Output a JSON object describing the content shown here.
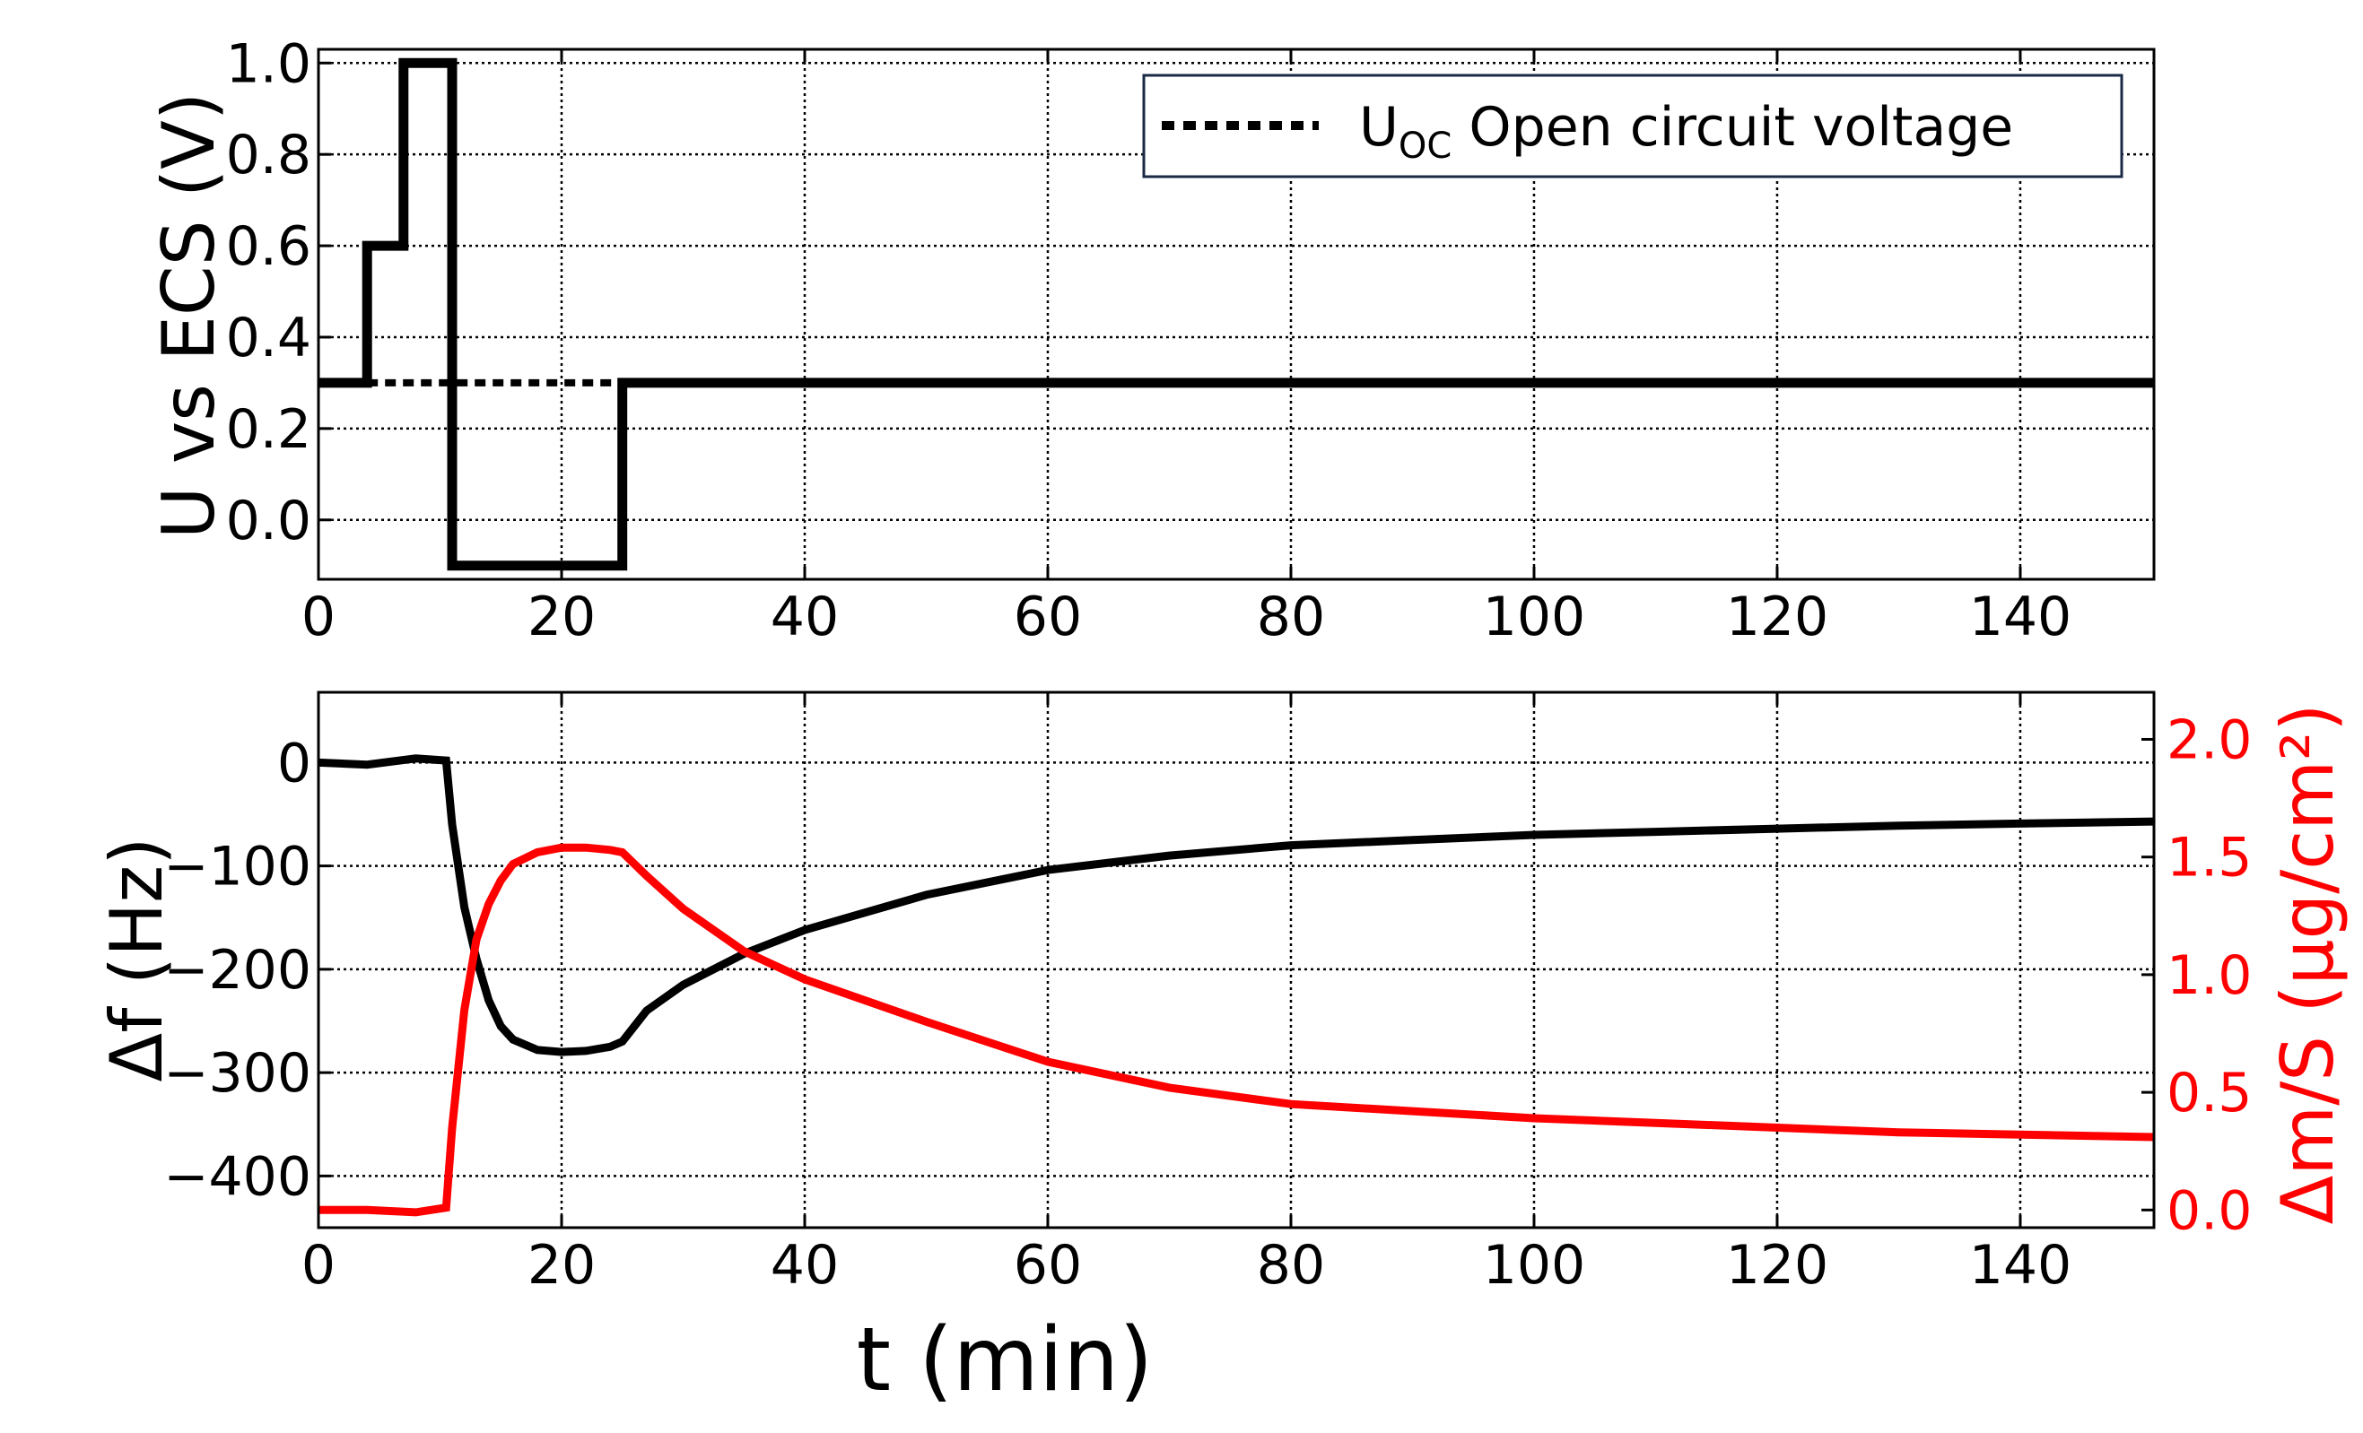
{
  "chart_data": [
    {
      "type": "line",
      "ylabel": "U vs ECS (V)",
      "xlim": [
        0,
        151
      ],
      "ylim": [
        -0.13,
        1.03
      ],
      "xticks": [
        0,
        20,
        40,
        60,
        80,
        100,
        120,
        140
      ],
      "yticks": [
        0.0,
        0.2,
        0.4,
        0.6,
        0.8,
        1.0
      ],
      "grid": true,
      "legend": {
        "placement": "top-right",
        "entries": [
          {
            "prefix": "U",
            "sub": "OC",
            "text": " Open circuit voltage",
            "style": "dotted"
          }
        ]
      },
      "series": [
        {
          "style": "solid",
          "color": "#000000",
          "x": [
            0,
            4,
            4,
            7,
            7,
            11,
            11,
            25,
            25,
            151
          ],
          "y": [
            0.3,
            0.3,
            0.6,
            0.6,
            1.0,
            1.0,
            -0.1,
            -0.1,
            0.3,
            0.3
          ]
        },
        {
          "name": "U_OC Open circuit voltage",
          "style": "dotted",
          "color": "#000000",
          "x": [
            4,
            25
          ],
          "y": [
            0.3,
            0.3
          ]
        }
      ]
    },
    {
      "type": "line",
      "xlabel": "t (min)",
      "ylabel": "Δf (Hz)",
      "ylabel_right": "Δm/S (μg/cm²)",
      "xlim": [
        0,
        151
      ],
      "ylim": [
        -450,
        68
      ],
      "ylim_right": [
        -0.075,
        2.2
      ],
      "xticks": [
        0,
        20,
        40,
        60,
        80,
        100,
        120,
        140
      ],
      "yticks": [
        -400,
        -300,
        -200,
        -100,
        0
      ],
      "yticks_right": [
        0.0,
        0.5,
        1.0,
        1.5,
        2.0
      ],
      "grid": true,
      "series": [
        {
          "axis": "left",
          "color": "#000000",
          "x": [
            0,
            4,
            8,
            10.5,
            11,
            12,
            13,
            14,
            15,
            16,
            18,
            20,
            22,
            24,
            25,
            27,
            30,
            35,
            40,
            50,
            60,
            70,
            80,
            90,
            100,
            110,
            120,
            130,
            140,
            151
          ],
          "y": [
            0,
            -2,
            4,
            2,
            -60,
            -140,
            -190,
            -230,
            -255,
            -268,
            -278,
            -280,
            -279,
            -275,
            -270,
            -240,
            -215,
            -185,
            -162,
            -128,
            -104,
            -90,
            -80,
            -75,
            -70,
            -67,
            -64,
            -61,
            -59,
            -57
          ]
        },
        {
          "axis": "right",
          "color": "#ff0000",
          "x": [
            0,
            4,
            8,
            10.5,
            11,
            12,
            13,
            14,
            15,
            16,
            18,
            20,
            22,
            24,
            25,
            27,
            30,
            35,
            40,
            50,
            60,
            70,
            80,
            90,
            100,
            110,
            120,
            130,
            140,
            151
          ],
          "y": [
            0.0,
            0.0,
            -0.01,
            0.01,
            0.35,
            0.85,
            1.15,
            1.3,
            1.4,
            1.47,
            1.52,
            1.54,
            1.54,
            1.53,
            1.52,
            1.42,
            1.28,
            1.1,
            0.98,
            0.8,
            0.63,
            0.52,
            0.45,
            0.42,
            0.39,
            0.37,
            0.35,
            0.33,
            0.32,
            0.31
          ]
        }
      ]
    }
  ]
}
